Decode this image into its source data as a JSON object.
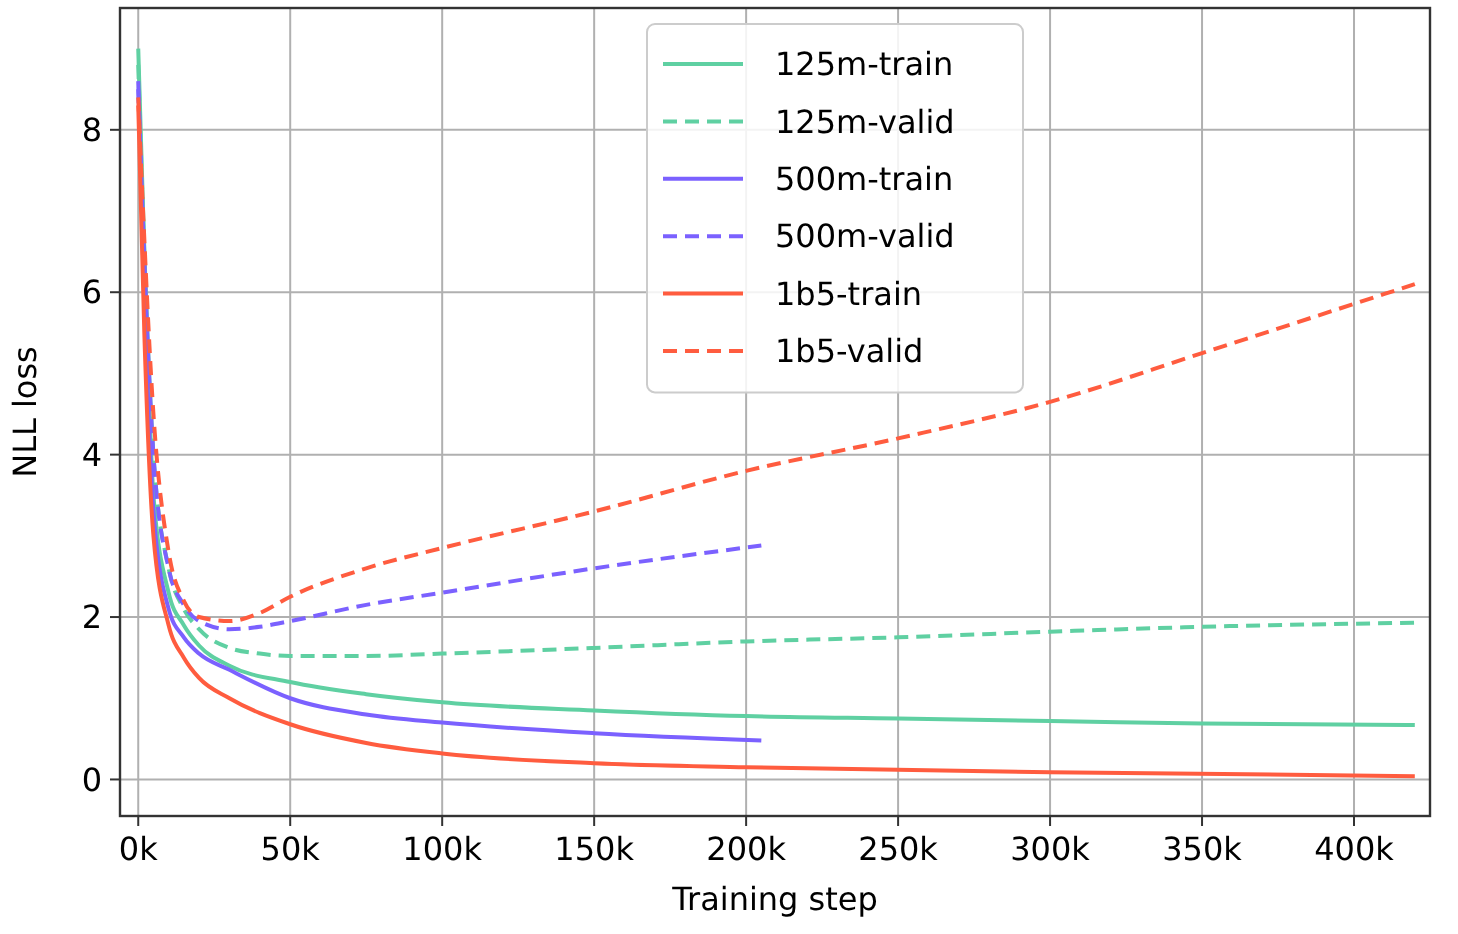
{
  "chart_data": {
    "type": "line",
    "xlabel": "Training step",
    "ylabel": "NLL loss",
    "xlim": [
      -6000,
      425000
    ],
    "ylim": [
      -0.45,
      9.5
    ],
    "xticks": [
      {
        "value": 0,
        "label": "0k"
      },
      {
        "value": 50000,
        "label": "50k"
      },
      {
        "value": 100000,
        "label": "100k"
      },
      {
        "value": 150000,
        "label": "150k"
      },
      {
        "value": 200000,
        "label": "200k"
      },
      {
        "value": 250000,
        "label": "250k"
      },
      {
        "value": 300000,
        "label": "300k"
      },
      {
        "value": 350000,
        "label": "350k"
      },
      {
        "value": 400000,
        "label": "400k"
      }
    ],
    "yticks": [
      0,
      2,
      4,
      6,
      8
    ],
    "grid": true,
    "legend": "top",
    "series": [
      {
        "name": "125m-train",
        "color": "#5fd0a2",
        "line_style": "solid",
        "x": [
          0,
          2000,
          5000,
          10000,
          15000,
          20000,
          30000,
          50000,
          75000,
          100000,
          150000,
          200000,
          250000,
          300000,
          350000,
          420000
        ],
        "values": [
          9.0,
          6.5,
          3.5,
          2.3,
          1.9,
          1.65,
          1.4,
          1.2,
          1.05,
          0.95,
          0.85,
          0.78,
          0.75,
          0.72,
          0.69,
          0.67
        ]
      },
      {
        "name": "125m-valid",
        "color": "#5fd0a2",
        "line_style": "dashed",
        "x": [
          0,
          2000,
          5000,
          10000,
          15000,
          20000,
          30000,
          40000,
          50000,
          75000,
          100000,
          150000,
          200000,
          250000,
          300000,
          350000,
          420000
        ],
        "values": [
          8.8,
          6.5,
          4.0,
          2.6,
          2.1,
          1.85,
          1.62,
          1.55,
          1.52,
          1.52,
          1.55,
          1.62,
          1.7,
          1.75,
          1.82,
          1.88,
          1.93
        ]
      },
      {
        "name": "500m-train",
        "color": "#7b61ff",
        "line_style": "solid",
        "x": [
          0,
          2000,
          5000,
          10000,
          15000,
          20000,
          30000,
          50000,
          75000,
          100000,
          150000,
          205000
        ],
        "values": [
          8.6,
          6.0,
          3.3,
          2.1,
          1.75,
          1.55,
          1.35,
          1.0,
          0.8,
          0.7,
          0.57,
          0.48
        ]
      },
      {
        "name": "500m-valid",
        "color": "#7b61ff",
        "line_style": "dashed",
        "x": [
          0,
          5000,
          10000,
          15000,
          20000,
          30000,
          40000,
          50000,
          75000,
          100000,
          150000,
          205000
        ],
        "values": [
          8.5,
          4.0,
          2.6,
          2.15,
          1.95,
          1.85,
          1.88,
          1.95,
          2.15,
          2.3,
          2.6,
          2.88
        ]
      },
      {
        "name": "1b5-train",
        "color": "#ff5c3f",
        "line_style": "solid",
        "x": [
          0,
          2000,
          5000,
          10000,
          15000,
          20000,
          30000,
          50000,
          75000,
          100000,
          150000,
          200000,
          300000,
          420000
        ],
        "values": [
          8.3,
          5.5,
          3.0,
          1.9,
          1.5,
          1.25,
          1.0,
          0.68,
          0.45,
          0.32,
          0.2,
          0.15,
          0.09,
          0.04
        ]
      },
      {
        "name": "1b5-valid",
        "color": "#ff5c3f",
        "line_style": "dashed",
        "x": [
          0,
          5000,
          10000,
          15000,
          20000,
          30000,
          40000,
          50000,
          75000,
          100000,
          150000,
          200000,
          250000,
          300000,
          350000,
          420000
        ],
        "values": [
          8.4,
          4.5,
          2.8,
          2.2,
          2.0,
          1.95,
          2.05,
          2.25,
          2.6,
          2.85,
          3.3,
          3.8,
          4.2,
          4.65,
          5.25,
          6.1
        ]
      }
    ]
  }
}
